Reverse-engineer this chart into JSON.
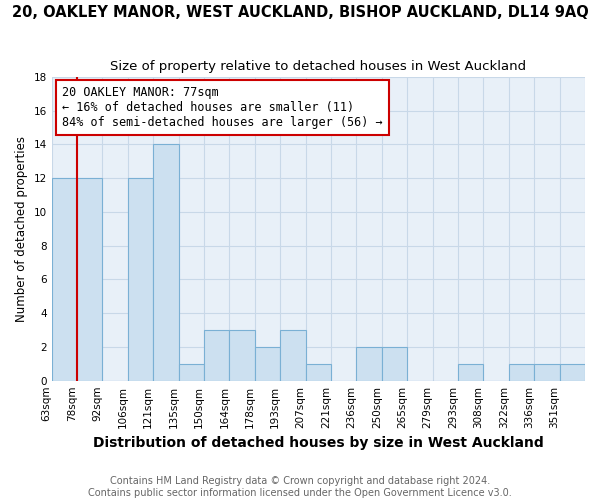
{
  "title": "20, OAKLEY MANOR, WEST AUCKLAND, BISHOP AUCKLAND, DL14 9AQ",
  "subtitle": "Size of property relative to detached houses in West Auckland",
  "xlabel": "Distribution of detached houses by size in West Auckland",
  "ylabel": "Number of detached properties",
  "bin_labels": [
    "63sqm",
    "78sqm",
    "92sqm",
    "106sqm",
    "121sqm",
    "135sqm",
    "150sqm",
    "164sqm",
    "178sqm",
    "193sqm",
    "207sqm",
    "221sqm",
    "236sqm",
    "250sqm",
    "265sqm",
    "279sqm",
    "293sqm",
    "308sqm",
    "322sqm",
    "336sqm",
    "351sqm"
  ],
  "counts": [
    12,
    12,
    0,
    12,
    14,
    1,
    3,
    3,
    2,
    3,
    1,
    0,
    2,
    2,
    0,
    0,
    1,
    0,
    1,
    1,
    1
  ],
  "annotation_text": "20 OAKLEY MANOR: 77sqm\n← 16% of detached houses are smaller (11)\n84% of semi-detached houses are larger (56) →",
  "bar_color": "#cce0f0",
  "bar_edge_color": "#7ab0d4",
  "annotation_box_color": "#ffffff",
  "annotation_box_edge": "#cc0000",
  "property_line_color": "#cc0000",
  "grid_color": "#c8d8e8",
  "ylim": [
    0,
    18
  ],
  "yticks": [
    0,
    2,
    4,
    6,
    8,
    10,
    12,
    14,
    16,
    18
  ],
  "background_color": "#ffffff",
  "plot_bg_color": "#e8f0f8",
  "footer_text": "Contains HM Land Registry data © Crown copyright and database right 2024.\nContains public sector information licensed under the Open Government Licence v3.0.",
  "title_fontsize": 10.5,
  "subtitle_fontsize": 9.5,
  "xlabel_fontsize": 10,
  "ylabel_fontsize": 8.5,
  "tick_fontsize": 7.5,
  "annotation_fontsize": 8.5,
  "footer_fontsize": 7
}
